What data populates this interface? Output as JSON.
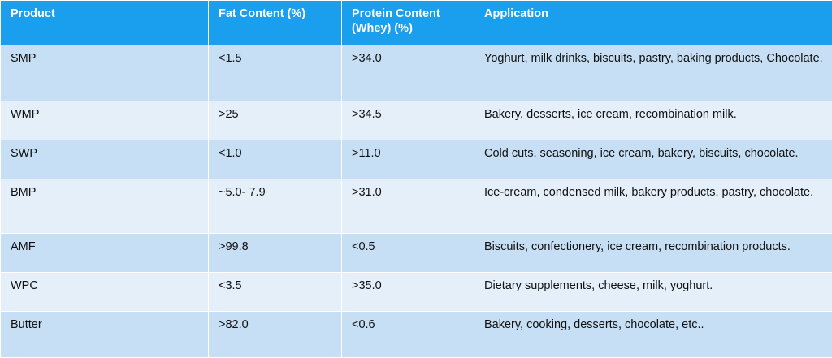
{
  "table": {
    "headers": [
      "Product",
      "Fat Content (%)",
      "Protein Content (Whey) (%)",
      "Application"
    ],
    "rows": [
      [
        "SMP",
        "<1.5",
        ">34.0",
        "Yoghurt, milk drinks, biscuits, pastry, baking products, Chocolate."
      ],
      [
        "WMP",
        ">25",
        ">34.5",
        "Bakery, desserts, ice cream, recombination milk."
      ],
      [
        "SWP",
        "<1.0",
        ">11.0",
        "Cold cuts, seasoning, ice cream, bakery, biscuits, chocolate."
      ],
      [
        "BMP",
        "~5.0- 7.9",
        ">31.0",
        "Ice-cream, condensed milk, bakery products, pastry, chocolate."
      ],
      [
        "AMF",
        ">99.8",
        "<0.5",
        "Biscuits, confectionery, ice cream, recombination products."
      ],
      [
        "WPC",
        "<3.5",
        ">35.0",
        "Dietary supplements, cheese, milk, yoghurt."
      ],
      [
        "Butter",
        ">82.0",
        "<0.6",
        "Bakery, cooking, desserts, chocolate, etc.."
      ]
    ]
  },
  "colors": {
    "header_bg": "#1a9eee",
    "row_dark": "#c7dff4",
    "row_light": "#e4effa"
  }
}
